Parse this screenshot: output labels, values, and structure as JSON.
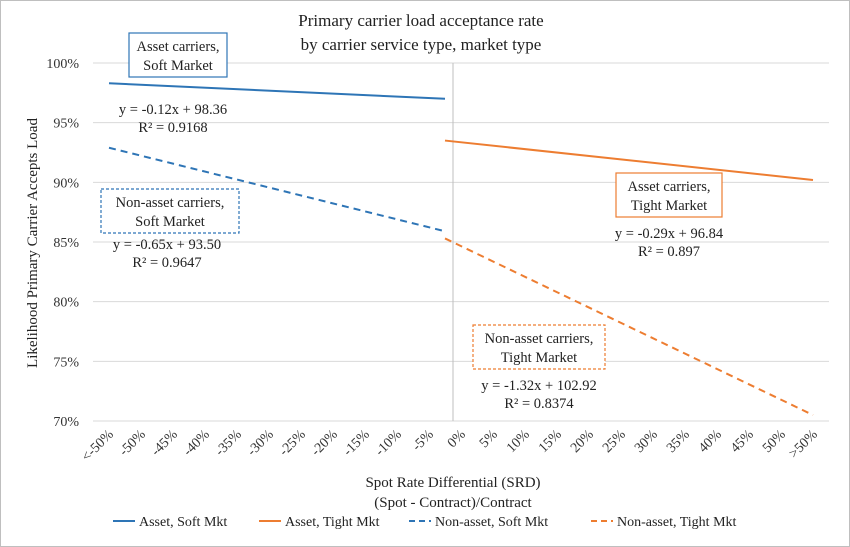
{
  "chart_data": {
    "type": "line",
    "title": "Primary carrier load acceptance rate",
    "subtitle": "by carrier service type, market type",
    "xlabel": "Spot Rate Differential (SRD)",
    "xlabel_sub": "(Spot - Contract)/Contract",
    "ylabel": "Likelihood Primary Carrier Accepts Load",
    "categories": [
      "<-50%",
      "-50%",
      "-45%",
      "-40%",
      "-35%",
      "-30%",
      "-25%",
      "-20%",
      "-15%",
      "-10%",
      "-5%",
      "0%",
      "5%",
      "10%",
      "15%",
      "20%",
      "25%",
      "30%",
      "35%",
      "40%",
      "45%",
      "50%",
      ">50%"
    ],
    "y_ticks": [
      "70%",
      "75%",
      "80%",
      "85%",
      "90%",
      "95%",
      "100%"
    ],
    "ylim": [
      70,
      100
    ],
    "grid": true,
    "legend_position": "bottom",
    "series": [
      {
        "name": "Asset, Soft Mkt",
        "color": "#2e75b6",
        "dash": "solid",
        "x_range": [
          "<-50%",
          "0%"
        ],
        "start": 98.3,
        "end": 97.0
      },
      {
        "name": "Asset, Tight Mkt",
        "color": "#ed7d31",
        "dash": "solid",
        "x_range": [
          "0%",
          ">50%"
        ],
        "start": 93.5,
        "end": 90.2
      },
      {
        "name": "Non-asset, Soft Mkt",
        "color": "#2e75b6",
        "dash": "dashed",
        "x_range": [
          "<-50%",
          "0%"
        ],
        "start": 92.9,
        "end": 85.9
      },
      {
        "name": "Non-asset, Tight Mkt",
        "color": "#ed7d31",
        "dash": "dashed",
        "x_range": [
          "0%",
          ">50%"
        ],
        "start": 85.3,
        "end": 70.5
      }
    ],
    "annotations": [
      {
        "series": "Asset, Soft Mkt",
        "box": [
          "Asset carriers,",
          "Soft Market"
        ],
        "box_style": "solid",
        "box_color": "#2e75b6",
        "equation": "y = -0.12x + 98.36",
        "r2": "R² = 0.9168"
      },
      {
        "series": "Asset, Tight Mkt",
        "box": [
          "Asset carriers,",
          "Tight Market"
        ],
        "box_style": "solid",
        "box_color": "#ed7d31",
        "equation": "y = -0.29x + 96.84",
        "r2": "R² = 0.897"
      },
      {
        "series": "Non-asset, Soft Mkt",
        "box": [
          "Non-asset carriers,",
          "Soft Market"
        ],
        "box_style": "dashed",
        "box_color": "#2e75b6",
        "equation": "y = -0.65x + 93.50",
        "r2": "R² = 0.9647"
      },
      {
        "series": "Non-asset, Tight Mkt",
        "box": [
          "Non-asset carriers,",
          "Tight Market"
        ],
        "box_style": "dashed",
        "box_color": "#ed7d31",
        "equation": "y = -1.32x + 102.92",
        "r2": "R² = 0.8374"
      }
    ]
  }
}
